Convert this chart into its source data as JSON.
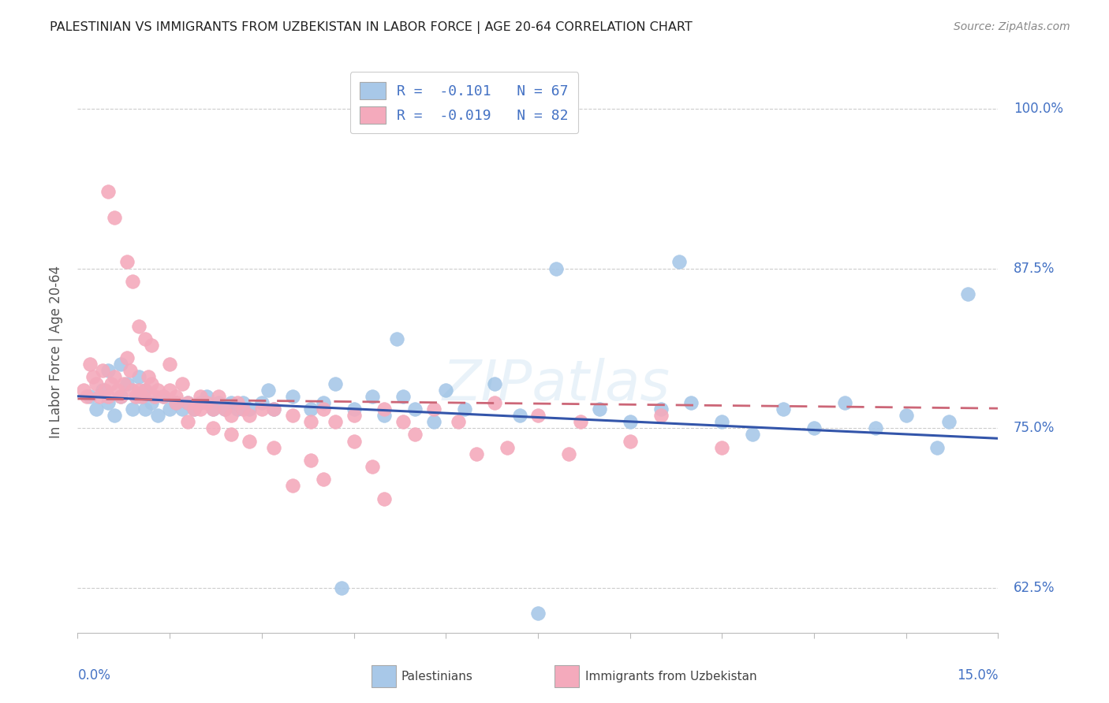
{
  "title": "PALESTINIAN VS IMMIGRANTS FROM UZBEKISTAN IN LABOR FORCE | AGE 20-64 CORRELATION CHART",
  "source": "Source: ZipAtlas.com",
  "ylabel": "In Labor Force | Age 20-64",
  "xlim": [
    0.0,
    15.0
  ],
  "ylim": [
    59.0,
    103.0
  ],
  "yticks": [
    62.5,
    75.0,
    87.5,
    100.0
  ],
  "ytick_labels": [
    "62.5%",
    "75.0%",
    "87.5%",
    "100.0%"
  ],
  "legend_label1": "Palestinians",
  "legend_label2": "Immigrants from Uzbekistan",
  "R1": -0.101,
  "N1": 67,
  "R2": -0.019,
  "N2": 82,
  "color_blue": "#A8C8E8",
  "color_pink": "#F4AABC",
  "color_blue_text": "#4472C4",
  "trend_blue": "#3355AA",
  "trend_pink": "#CC6677",
  "bg_color": "#FFFFFF",
  "grid_color": "#CCCCCC",
  "watermark": "ZIPatlas",
  "scatter1_x": [
    0.2,
    0.3,
    0.4,
    0.5,
    0.5,
    0.6,
    0.7,
    0.7,
    0.8,
    0.9,
    1.0,
    1.0,
    1.1,
    1.1,
    1.2,
    1.3,
    1.4,
    1.5,
    1.6,
    1.7,
    1.8,
    1.9,
    2.0,
    2.1,
    2.2,
    2.3,
    2.4,
    2.5,
    2.6,
    2.7,
    2.8,
    3.0,
    3.1,
    3.2,
    3.5,
    3.8,
    4.0,
    4.2,
    4.5,
    4.8,
    5.0,
    5.3,
    5.5,
    5.8,
    6.0,
    6.3,
    6.8,
    7.2,
    7.8,
    8.5,
    9.0,
    9.5,
    10.0,
    10.5,
    11.0,
    11.5,
    12.0,
    12.5,
    13.0,
    13.5,
    14.0,
    14.2,
    14.5,
    4.3,
    7.5,
    5.2,
    9.8
  ],
  "scatter1_y": [
    77.5,
    76.5,
    78.0,
    77.0,
    79.5,
    76.0,
    80.0,
    77.5,
    78.5,
    76.5,
    77.5,
    79.0,
    78.0,
    76.5,
    77.0,
    76.0,
    77.5,
    76.5,
    77.0,
    76.5,
    77.0,
    76.5,
    77.0,
    77.5,
    76.5,
    77.0,
    76.5,
    77.0,
    76.5,
    77.0,
    76.5,
    77.0,
    78.0,
    76.5,
    77.5,
    76.5,
    77.0,
    78.5,
    76.5,
    77.5,
    76.0,
    77.5,
    76.5,
    75.5,
    78.0,
    76.5,
    78.5,
    76.0,
    87.5,
    76.5,
    75.5,
    76.5,
    77.0,
    75.5,
    74.5,
    76.5,
    75.0,
    77.0,
    75.0,
    76.0,
    73.5,
    75.5,
    85.5,
    62.5,
    60.5,
    82.0,
    88.0
  ],
  "scatter2_x": [
    0.1,
    0.15,
    0.2,
    0.25,
    0.3,
    0.35,
    0.4,
    0.45,
    0.5,
    0.55,
    0.6,
    0.65,
    0.7,
    0.75,
    0.8,
    0.85,
    0.9,
    0.95,
    1.0,
    1.05,
    1.1,
    1.15,
    1.2,
    1.25,
    1.3,
    1.4,
    1.5,
    1.6,
    1.7,
    1.8,
    1.9,
    2.0,
    2.1,
    2.2,
    2.3,
    2.4,
    2.5,
    2.6,
    2.7,
    2.8,
    3.0,
    3.2,
    3.5,
    3.8,
    4.0,
    4.2,
    4.5,
    5.0,
    5.3,
    5.8,
    6.2,
    6.8,
    7.5,
    8.2,
    9.5,
    0.5,
    0.6,
    0.8,
    0.9,
    1.0,
    1.1,
    1.2,
    1.5,
    1.6,
    1.8,
    2.0,
    2.2,
    2.5,
    2.8,
    3.2,
    3.8,
    4.5,
    5.5,
    4.8,
    6.5,
    7.0,
    8.0,
    9.0,
    10.5,
    3.5,
    4.0,
    5.0
  ],
  "scatter2_y": [
    78.0,
    77.5,
    80.0,
    79.0,
    78.5,
    77.5,
    79.5,
    78.0,
    77.5,
    78.5,
    79.0,
    78.0,
    77.5,
    78.5,
    80.5,
    79.5,
    78.0,
    77.5,
    78.0,
    77.5,
    78.0,
    79.0,
    78.5,
    77.5,
    78.0,
    77.5,
    78.0,
    77.5,
    78.5,
    77.0,
    76.5,
    77.5,
    77.0,
    76.5,
    77.5,
    76.5,
    76.0,
    77.0,
    76.5,
    76.0,
    76.5,
    76.5,
    76.0,
    75.5,
    76.5,
    75.5,
    76.0,
    76.5,
    75.5,
    76.5,
    75.5,
    77.0,
    76.0,
    75.5,
    76.0,
    93.5,
    91.5,
    88.0,
    86.5,
    83.0,
    82.0,
    81.5,
    80.0,
    77.0,
    75.5,
    76.5,
    75.0,
    74.5,
    74.0,
    73.5,
    72.5,
    74.0,
    74.5,
    72.0,
    73.0,
    73.5,
    73.0,
    74.0,
    73.5,
    70.5,
    71.0,
    69.5
  ]
}
